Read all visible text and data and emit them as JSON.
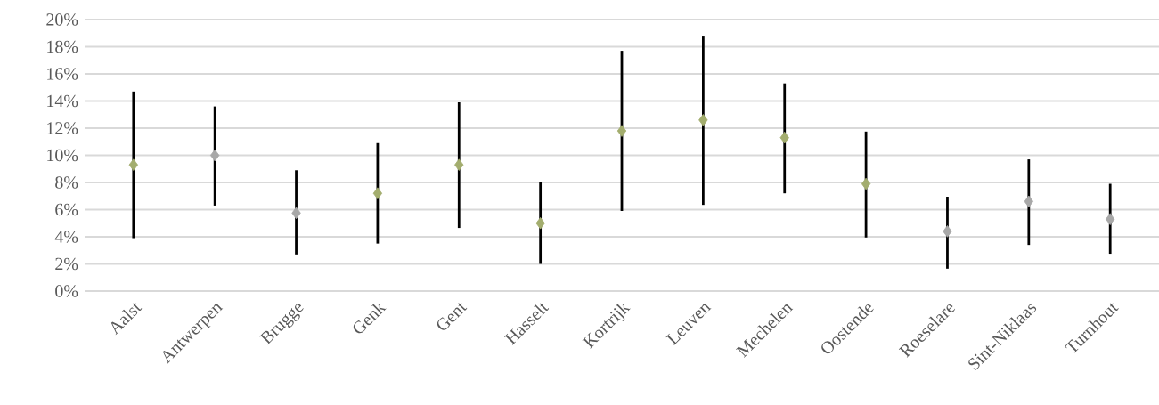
{
  "chart_data": {
    "type": "scatter",
    "categories": [
      "Aalst",
      "Antwerpen",
      "Brugge",
      "Genk",
      "Gent",
      "Hasselt",
      "Kortrijk",
      "Leuven",
      "Mechelen",
      "Oostende",
      "Roeselare",
      "Sint-Niklaas",
      "Turnhout"
    ],
    "values": [
      9.3,
      10.0,
      5.75,
      7.2,
      9.3,
      5.0,
      11.8,
      12.6,
      11.3,
      7.9,
      4.4,
      6.6,
      5.3
    ],
    "errors": [
      [
        3.9,
        14.7
      ],
      [
        6.3,
        13.6
      ],
      [
        2.7,
        8.9
      ],
      [
        3.5,
        10.9
      ],
      [
        4.65,
        13.9
      ],
      [
        2.0,
        8.0
      ],
      [
        5.9,
        17.7
      ],
      [
        6.35,
        18.75
      ],
      [
        7.2,
        15.3
      ],
      [
        3.95,
        11.75
      ],
      [
        1.65,
        6.95
      ],
      [
        3.4,
        9.7
      ],
      [
        2.75,
        7.9
      ]
    ],
    "colors": [
      "#a3ad6e",
      "#a8a8a8",
      "#a8a8a8",
      "#a3ad6e",
      "#a3ad6e",
      "#a3ad6e",
      "#a3ad6e",
      "#a3ad6e",
      "#a3ad6e",
      "#a3ad6e",
      "#a8a8a8",
      "#a8a8a8",
      "#a8a8a8"
    ],
    "marker": "diamond",
    "grid": "y",
    "ylim": [
      0,
      20
    ],
    "yticks": [
      {
        "value": 0,
        "label": "0%"
      },
      {
        "value": 2,
        "label": "2%"
      },
      {
        "value": 4,
        "label": "4%"
      },
      {
        "value": 6,
        "label": "6%"
      },
      {
        "value": 8,
        "label": "8%"
      },
      {
        "value": 10,
        "label": "10%"
      },
      {
        "value": 12,
        "label": "12%"
      },
      {
        "value": 14,
        "label": "14%"
      },
      {
        "value": 16,
        "label": "16%"
      },
      {
        "value": 18,
        "label": "18%"
      },
      {
        "value": 20,
        "label": "20%"
      }
    ]
  }
}
